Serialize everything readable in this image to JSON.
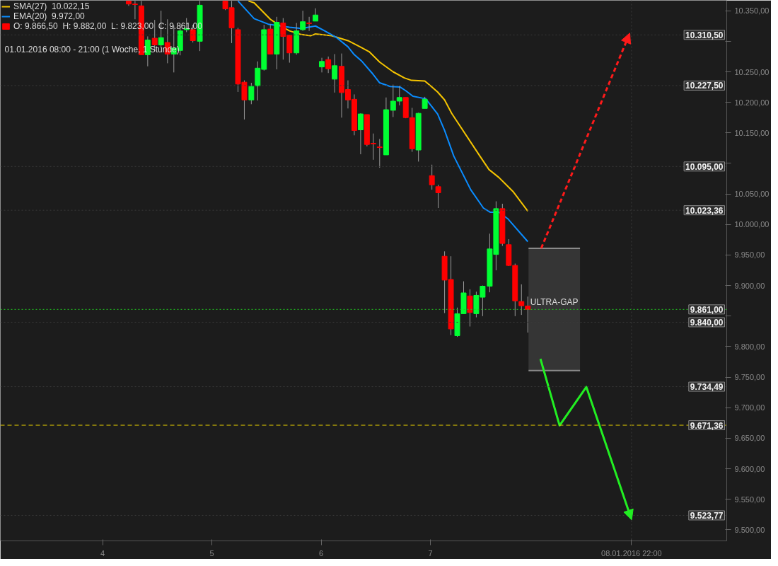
{
  "chart_data": {
    "type": "candlestick",
    "subtitle": "01.01.2016 08:00 - 21:00 (1 Woche, 1 Stunde)",
    "xlim": [
      3.065,
      9.71
    ],
    "ylim": [
      9482,
      10367
    ],
    "xticks": [
      4,
      5,
      6,
      7,
      {
        "value": 8.839,
        "label": "08.01.2016 22:00"
      }
    ],
    "yticks": [
      {
        "value": 9500,
        "label": "9.500,00"
      },
      {
        "value": 9550,
        "label": "9.550,00"
      },
      {
        "value": 9600,
        "label": "9.600,00"
      },
      {
        "value": 9650,
        "label": "9.650,00"
      },
      {
        "value": 9700,
        "label": "9.700,00"
      },
      {
        "value": 9750,
        "label": "9.750,00"
      },
      {
        "value": 9800,
        "label": "9.800,00"
      },
      {
        "value": 9850,
        "label": null
      },
      {
        "value": 9900,
        "label": "9.900,00"
      },
      {
        "value": 9950,
        "label": "9.950,00"
      },
      {
        "value": 10000,
        "label": "10.000,00"
      },
      {
        "value": 10050,
        "label": "10.050,00"
      },
      {
        "value": 10100,
        "label": null
      },
      {
        "value": 10150,
        "label": "10.150,00"
      },
      {
        "value": 10200,
        "label": "10.200,00"
      },
      {
        "value": 10250,
        "label": "10.250,00"
      },
      {
        "value": 10300,
        "label": null
      },
      {
        "value": 10350,
        "label": "10.350,00"
      }
    ],
    "grid": false,
    "legend": "top left",
    "series": [
      {
        "name": "O: 9.866,50  H: 9.882,00  L: 9.823,00  C: 9.861,00",
        "x": [
          4.239,
          4.297,
          4.355,
          4.413,
          4.477,
          4.535,
          4.594,
          4.652,
          4.71,
          4.768,
          4.826,
          4.89,
          5.123,
          5.181,
          5.239,
          5.297,
          5.361,
          5.419,
          5.477,
          5.535,
          5.594,
          5.652,
          5.71,
          5.774,
          5.832,
          5.89,
          5.948,
          6.006,
          6.065,
          6.123,
          6.187,
          6.245,
          6.303,
          6.361,
          6.419,
          6.477,
          6.535,
          6.594,
          6.658,
          6.716,
          6.774,
          6.832,
          6.89,
          6.948,
          7.013,
          7.071,
          7.129,
          7.187,
          7.245,
          7.303,
          7.361,
          7.419,
          7.477,
          7.542,
          7.6,
          7.658,
          7.716,
          7.774,
          7.832,
          7.89
        ],
        "ohlc": [
          [
            10366,
            10366,
            10358,
            10361
          ],
          [
            10361,
            10366,
            10336,
            10360
          ],
          [
            10358,
            10366,
            10278,
            10278
          ],
          [
            10278,
            10308,
            10259,
            10302
          ],
          [
            10305,
            10335,
            10284,
            10294
          ],
          [
            10294,
            10350,
            10289,
            10306
          ],
          [
            10298,
            10336,
            10264,
            10279
          ],
          [
            10279,
            10326,
            10249,
            10289
          ],
          [
            10285,
            10326,
            10277,
            10317
          ],
          [
            10319,
            10338,
            10315,
            10321
          ],
          [
            10319,
            10327,
            10298,
            10301
          ],
          [
            10300,
            10366,
            10284,
            10359
          ],
          [
            10366,
            10366,
            10351,
            10353
          ],
          [
            10355,
            10366,
            10297,
            10322
          ],
          [
            10319,
            10322,
            10217,
            10230
          ],
          [
            10233,
            10236,
            10172,
            10204
          ],
          [
            10204,
            10232,
            10197,
            10226
          ],
          [
            10227,
            10267,
            10203,
            10256
          ],
          [
            10254,
            10327,
            10252,
            10319
          ],
          [
            10320,
            10328,
            10279,
            10279
          ],
          [
            10279,
            10340,
            10254,
            10331
          ],
          [
            10330,
            10338,
            10270,
            10308
          ],
          [
            10310,
            10310,
            10265,
            10281
          ],
          [
            10281,
            10330,
            10278,
            10317
          ],
          [
            10319,
            10350,
            10317,
            10332
          ],
          [
            10330,
            10340,
            10317,
            10329
          ],
          [
            10333,
            10354,
            10333,
            10343
          ],
          [
            10258,
            10273,
            10249,
            10267
          ],
          [
            10270,
            10275,
            10248,
            10255
          ],
          [
            10238,
            10279,
            10216,
            10260
          ],
          [
            10259,
            10280,
            10175,
            10216
          ],
          [
            10221,
            10236,
            10190,
            10204
          ],
          [
            10205,
            10213,
            10146,
            10154
          ],
          [
            10155,
            10182,
            10115,
            10181
          ],
          [
            10180,
            10180,
            10128,
            10131
          ],
          [
            10133,
            10149,
            10106,
            10132
          ],
          [
            10127,
            10140,
            10093,
            10126
          ],
          [
            10114,
            10208,
            10114,
            10188
          ],
          [
            10187,
            10229,
            10176,
            10202
          ],
          [
            10202,
            10227,
            10195,
            10208
          ],
          [
            10208,
            10208,
            10174,
            10175
          ],
          [
            10175,
            10191,
            10119,
            10124
          ],
          [
            10122,
            10183,
            10103,
            10182
          ],
          [
            10190,
            10209,
            10190,
            10205
          ],
          [
            10080,
            10098,
            10057,
            10065
          ],
          [
            10062,
            10065,
            10027,
            10052
          ],
          [
            9948,
            9956,
            9855,
            9909
          ],
          [
            9910,
            9948,
            9819,
            9829
          ],
          [
            9818,
            9864,
            9816,
            9854
          ],
          [
            9854,
            9907,
            9854,
            9888
          ],
          [
            9883,
            9894,
            9833,
            9856
          ],
          [
            9854,
            9890,
            9848,
            9884
          ],
          [
            9881,
            9900,
            9850,
            9899
          ],
          [
            9899,
            9985,
            9889,
            9960
          ],
          [
            9951,
            10038,
            9925,
            10026
          ],
          [
            10026,
            10034,
            9965,
            9969
          ],
          [
            9967,
            9976,
            9932,
            9933
          ],
          [
            9933,
            9936,
            9850,
            9875
          ],
          [
            9874,
            9902,
            9852,
            9867
          ],
          [
            9866.5,
            9882,
            9823,
            9861
          ]
        ],
        "colors": [
          "#ff0000",
          "#ff0000",
          "#ff0000",
          "#00ff33",
          "#ff0000",
          "#00ff33",
          "#ff0000",
          "#00ff33",
          "#00ff33",
          "#00ff33",
          "#ff0000",
          "#00ff33",
          "#ff0000",
          "#ff0000",
          "#ff0000",
          "#ff0000",
          "#00ff33",
          "#00ff33",
          "#00ff33",
          "#ff0000",
          "#00ff33",
          "#ff0000",
          "#ff0000",
          "#00ff33",
          "#00ff33",
          "#ff0000",
          "#00ff33",
          "#00ff33",
          "#ff0000",
          "#00ff33",
          "#ff0000",
          "#ff0000",
          "#ff0000",
          "#00ff33",
          "#ff0000",
          "#ff0000",
          "#ff0000",
          "#00ff33",
          "#00ff33",
          "#00ff33",
          "#ff0000",
          "#ff0000",
          "#00ff33",
          "#00ff33",
          "#ff0000",
          "#ff0000",
          "#ff0000",
          "#ff0000",
          "#00ff33",
          "#00ff33",
          "#ff0000",
          "#00ff33",
          "#00ff33",
          "#00ff33",
          "#00ff33",
          "#ff0000",
          "#ff0000",
          "#ff0000",
          "#ff0000",
          "#ff0000"
        ]
      },
      {
        "type": "line",
        "name": "SMA(27)  10.022,15",
        "color": "#f5c400",
        "x": [
          5.335,
          5.387,
          5.535,
          5.6,
          5.71,
          5.819,
          5.903,
          5.948,
          6.097,
          6.245,
          6.355,
          6.439,
          6.535,
          6.658,
          6.761,
          6.826,
          6.948,
          7.0,
          7.065,
          7.129,
          7.194,
          7.452,
          7.535,
          7.626,
          7.755,
          7.89
        ],
        "values": [
          10366,
          10363,
          10336,
          10328,
          10317,
          10311,
          10309,
          10312,
          10309,
          10301,
          10291,
          10283,
          10266,
          10250,
          10240,
          10236,
          10235,
          10227,
          10217,
          10204,
          10182,
          10112,
          10090,
          10077,
          10054,
          10022
        ]
      },
      {
        "type": "line",
        "name": "EMA(20)  9.972,00",
        "color": "#0a8cff",
        "x": [
          5.239,
          5.387,
          5.516,
          5.71,
          5.819,
          5.948,
          6.032,
          6.142,
          6.245,
          6.303,
          6.368,
          6.465,
          6.535,
          6.632,
          6.723,
          6.774,
          6.839,
          6.923,
          6.955,
          7.065,
          7.129,
          7.213,
          7.368,
          7.484,
          7.548,
          7.626,
          7.71,
          7.89
        ],
        "values": [
          10366,
          10337,
          10328,
          10323,
          10321,
          10325,
          10317,
          10306,
          10291,
          10278,
          10268,
          10248,
          10232,
          10226,
          10225,
          10219,
          10210,
          10207,
          10206,
          10181,
          10154,
          10112,
          10057,
          10027,
          10020,
          10020,
          10009,
          9972
        ]
      },
      {
        "type": "bar",
        "name": "ULTRA-GAP",
        "color": "#353535",
        "x": [
          8.1325
        ],
        "base": [
          9761
        ],
        "values": [
          200
        ]
      },
      {
        "type": "line",
        "color": "#ff1a1a",
        "line_style": "dashed",
        "x": [
          8.013,
          8.806
        ],
        "values": [
          9961,
          10306
        ]
      },
      {
        "type": "line",
        "color": "#22ee22",
        "line_style": "solid",
        "x": [
          8.006,
          8.181,
          8.426,
          8.826
        ],
        "values": [
          9780,
          9671,
          9734,
          9524
        ]
      }
    ],
    "ref_lines": [
      {
        "axis": "y",
        "value": 10310.5,
        "label": "10.310,50",
        "color": "#3a3a3a",
        "line_style": "dotted"
      },
      {
        "axis": "y",
        "value": 10227.5,
        "label": "10.227,50",
        "color": "#3a3a3a",
        "line_style": "dotted"
      },
      {
        "axis": "y",
        "value": 10095,
        "label": "10.095,00",
        "color": "#3a3a3a",
        "line_style": "dotted"
      },
      {
        "axis": "y",
        "value": 10023.36,
        "label": "10.023,36",
        "color": "#3a3a3a",
        "line_style": "dotted"
      },
      {
        "axis": "y",
        "value": 9861,
        "label": "9.861,00",
        "color": "#22cc22",
        "line_style": "dotted"
      },
      {
        "axis": "y",
        "value": 9840,
        "label": "9.840,00",
        "color": "#3a3a3a",
        "line_style": "dotted"
      },
      {
        "axis": "y",
        "value": 9734.49,
        "label": "9.734,49",
        "color": "#3a3a3a",
        "line_style": "dotted"
      },
      {
        "axis": "y",
        "value": 9671.36,
        "label": "9.671,36",
        "color": "#e8d000",
        "line_style": "dashed"
      },
      {
        "axis": "y",
        "value": 9523.77,
        "label": "9.523,77",
        "color": "#3a3a3a",
        "line_style": "dotted"
      },
      {
        "axis": "x",
        "value": 8.839,
        "color": "#3a3a3a",
        "line_style": "dotted"
      }
    ]
  }
}
